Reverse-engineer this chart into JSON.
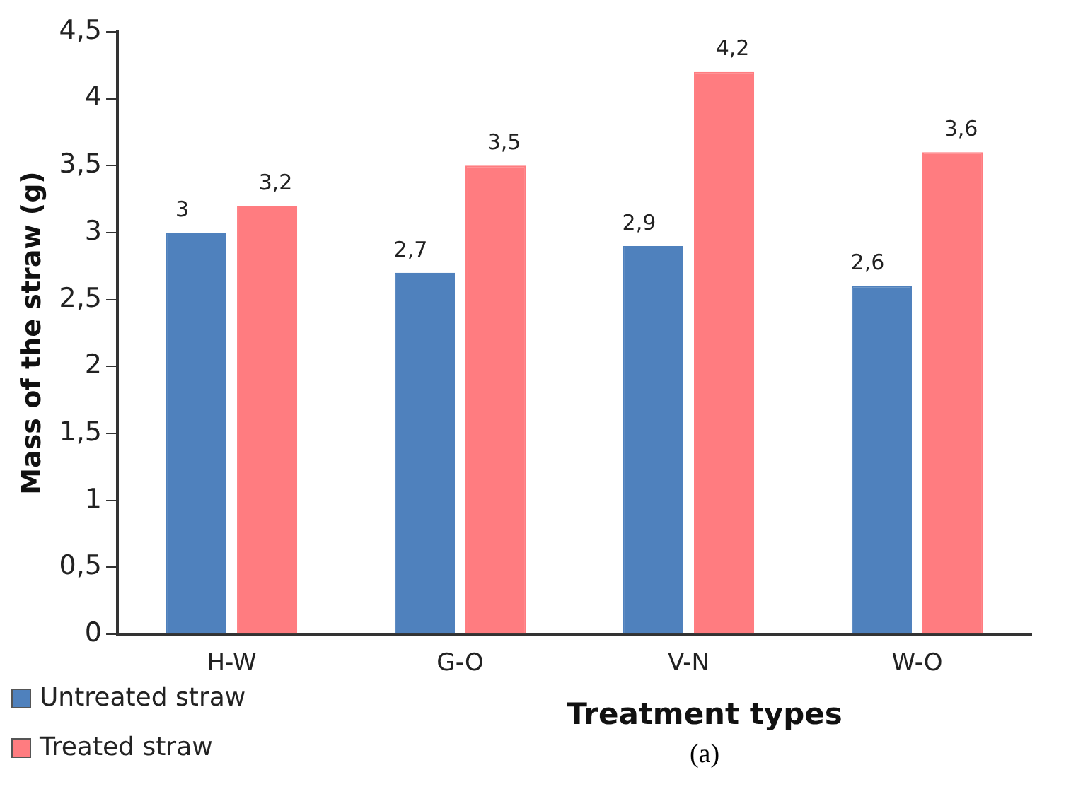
{
  "chart_data": {
    "type": "bar",
    "ylabel": "Mass of the straw (g)",
    "xlabel": "Treatment types",
    "annotations": [
      "(a)"
    ],
    "categories": [
      "H-W",
      "G-O",
      "V-N",
      "W-O"
    ],
    "series": [
      {
        "name": "Untreated straw",
        "color": "#4f81bd",
        "values": [
          3,
          2.7,
          2.9,
          2.6
        ],
        "value_labels": [
          "3",
          "2,7",
          "2,9",
          "2,6"
        ]
      },
      {
        "name": "Treated straw",
        "color": "#ff7c80",
        "values": [
          3.2,
          3.5,
          4.2,
          3.6
        ],
        "value_labels": [
          "3,2",
          "3,5",
          "4,2",
          "3,6"
        ]
      }
    ],
    "ylim": [
      0,
      4.5
    ],
    "yticks": [
      0,
      {
        "value": 0.5,
        "label": "0,5"
      },
      1,
      {
        "value": 1.5,
        "label": "1,5"
      },
      2,
      {
        "value": 2.5,
        "label": "2,5"
      },
      3,
      {
        "value": 3.5,
        "label": "3,5"
      },
      4,
      {
        "value": 4.5,
        "label": "4,5"
      }
    ],
    "grid": false,
    "legend": "bottom left"
  }
}
